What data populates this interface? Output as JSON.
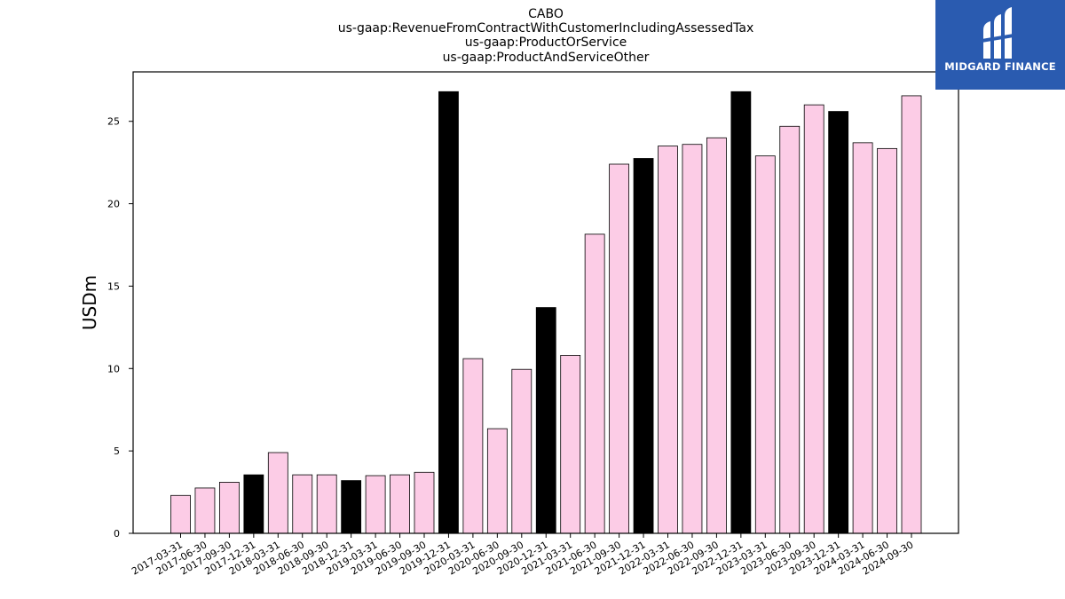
{
  "chart_data": {
    "type": "bar",
    "title_lines": [
      "CABO",
      "us-gaap:RevenueFromContractWithCustomerIncludingAssessedTax",
      "us-gaap:ProductOrService",
      "us-gaap:ProductAndServiceOther"
    ],
    "ylabel": "USDm",
    "xlabel": "",
    "ylim": [
      0,
      28
    ],
    "yticks": [
      0,
      5,
      10,
      15,
      20,
      25
    ],
    "grid": false,
    "colors": {
      "regular": "#fccce6",
      "year_end": "#000000",
      "edge": "#000000"
    },
    "categories": [
      "2017-03-31",
      "2017-06-30",
      "2017-09-30",
      "2017-12-31",
      "2018-03-31",
      "2018-06-30",
      "2018-09-30",
      "2018-12-31",
      "2019-03-31",
      "2019-06-30",
      "2019-09-30",
      "2019-12-31",
      "2020-03-31",
      "2020-06-30",
      "2020-09-30",
      "2020-12-31",
      "2021-03-31",
      "2021-06-30",
      "2021-09-30",
      "2021-12-31",
      "2022-03-31",
      "2022-06-30",
      "2022-09-30",
      "2022-12-31",
      "2023-03-31",
      "2023-06-30",
      "2023-09-30",
      "2023-12-31",
      "2024-03-31",
      "2024-06-30",
      "2024-09-30"
    ],
    "values": [
      2.3,
      2.75,
      3.1,
      3.55,
      4.9,
      3.55,
      3.55,
      3.2,
      3.5,
      3.55,
      3.7,
      26.8,
      10.6,
      6.35,
      9.95,
      13.7,
      10.8,
      18.15,
      22.4,
      22.75,
      23.5,
      23.6,
      24.0,
      26.8,
      22.9,
      24.7,
      26.0,
      25.6,
      23.7,
      23.35,
      26.55
    ]
  },
  "logo": {
    "text": "MIDGARD FINANCE",
    "icon": "midgard-logo-icon"
  }
}
